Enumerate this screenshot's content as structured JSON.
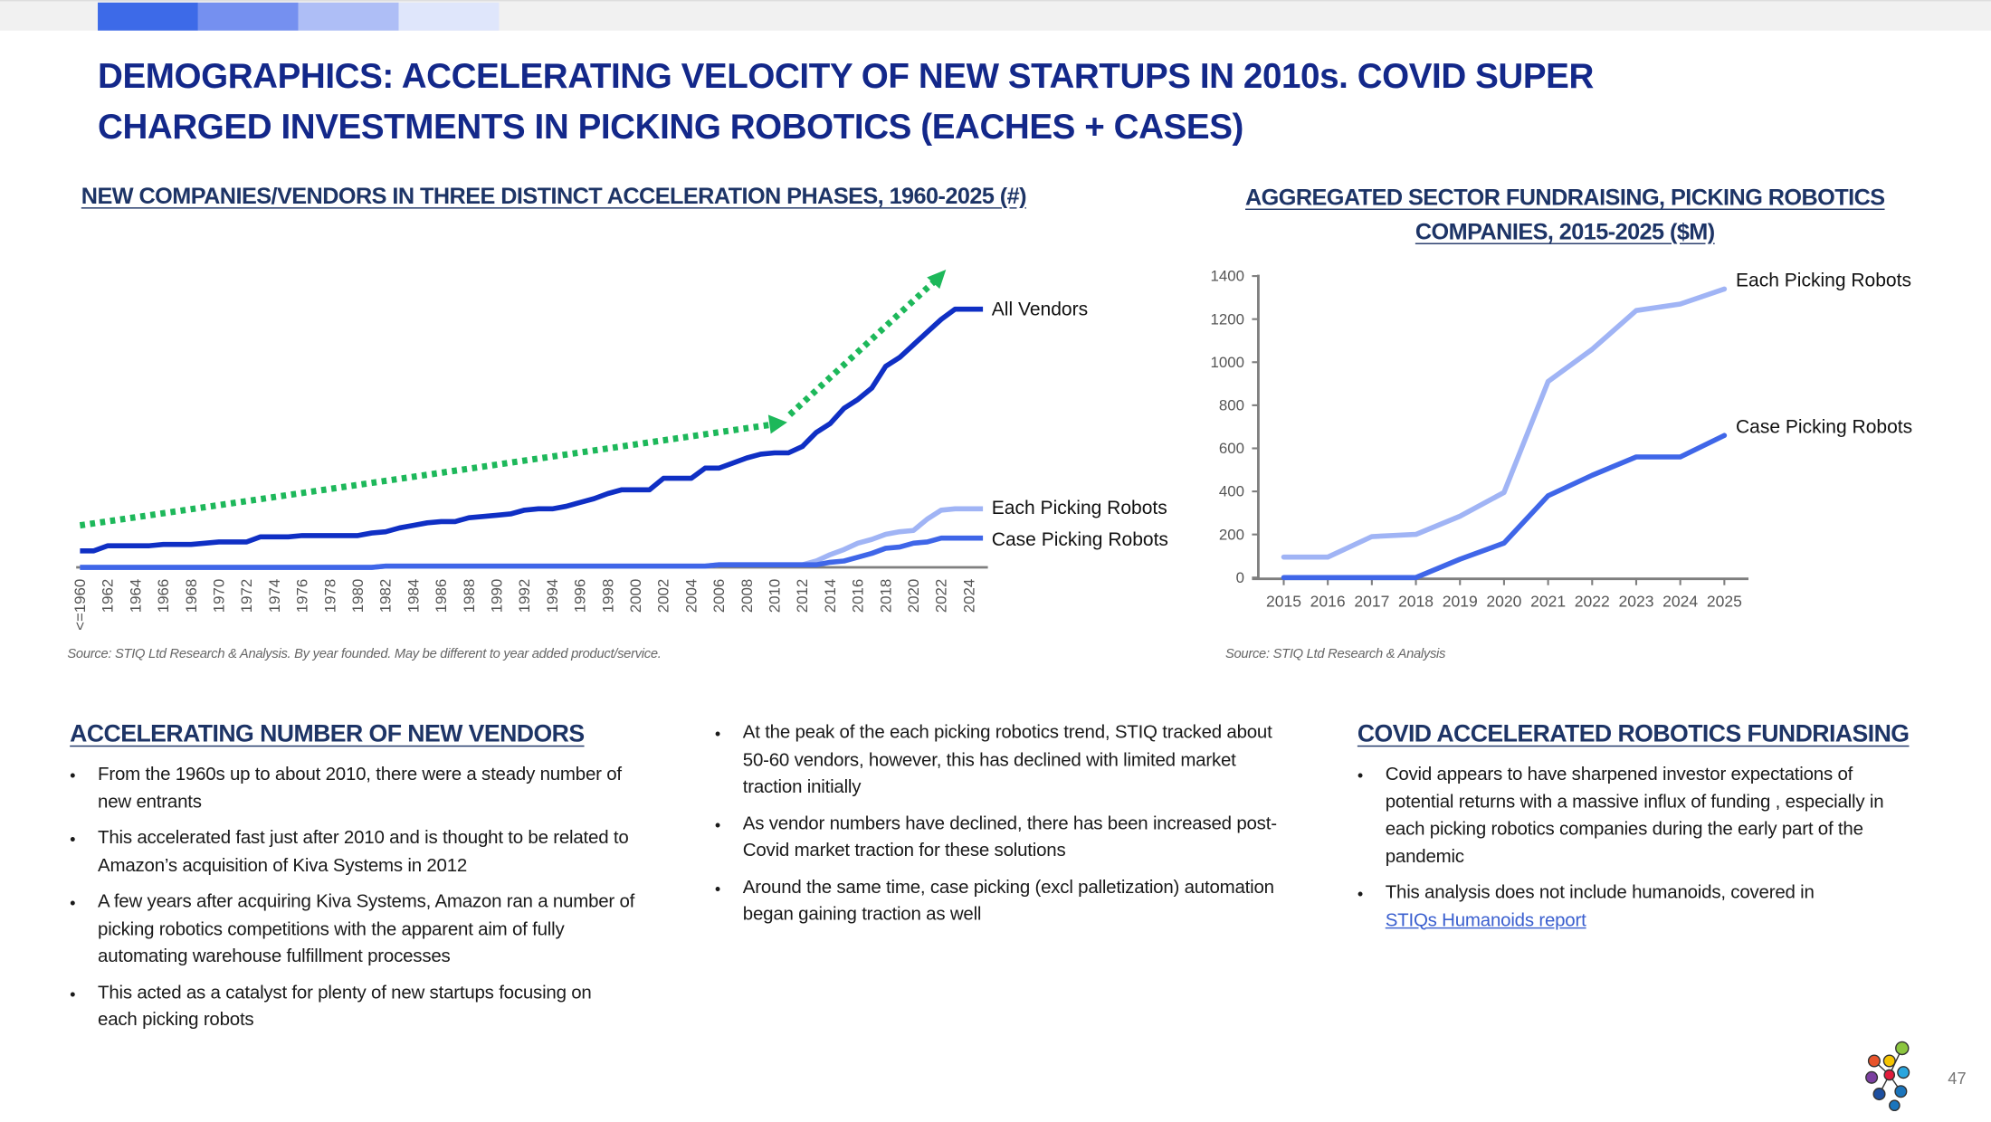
{
  "title": "DEMOGRAPHICS: ACCELERATING VELOCITY OF NEW STARTUPS IN 2010s. COVID SUPER CHARGED INVESTMENTS IN PICKING ROBOTICS (EACHES + CASES)",
  "colors": {
    "title": "#13288a",
    "heading": "#1d3466",
    "all_vendors": "#0f2fc4",
    "each": "#a0b4f5",
    "case": "#3f66e8",
    "trend": "#1db85a",
    "strip": [
      "#3d6ae8",
      "#7590f0",
      "#aebef6",
      "#dfe6fb"
    ]
  },
  "chart_data": [
    {
      "type": "line",
      "title": "NEW COMPANIES/VENDORS IN THREE DISTINCT ACCELERATION PHASES, 1960-2025 (#)",
      "x": [
        1960,
        1961,
        1962,
        1963,
        1964,
        1965,
        1966,
        1967,
        1968,
        1969,
        1970,
        1971,
        1972,
        1973,
        1974,
        1975,
        1976,
        1977,
        1978,
        1979,
        1980,
        1981,
        1982,
        1983,
        1984,
        1985,
        1986,
        1987,
        1988,
        1989,
        1990,
        1991,
        1992,
        1993,
        1994,
        1995,
        1996,
        1997,
        1998,
        1999,
        2000,
        2001,
        2002,
        2003,
        2004,
        2005,
        2006,
        2007,
        2008,
        2009,
        2010,
        2011,
        2012,
        2013,
        2014,
        2015,
        2016,
        2017,
        2018,
        2019,
        2020,
        2021,
        2022,
        2023,
        2024,
        2025
      ],
      "tick_labels": [
        "<=1960",
        "1962",
        "1964",
        "1966",
        "1968",
        "1970",
        "1972",
        "1974",
        "1976",
        "1978",
        "1980",
        "1982",
        "1984",
        "1986",
        "1988",
        "1990",
        "1992",
        "1994",
        "1996",
        "1998",
        "2000",
        "2002",
        "2004",
        "2006",
        "2008",
        "2010",
        "2012",
        "2014",
        "2016",
        "2018",
        "2020",
        "2022",
        "2024"
      ],
      "ylim": [
        0,
        220
      ],
      "y_axis_labels_shown": false,
      "series": [
        {
          "name": "All Vendors",
          "values": [
            13,
            13,
            17,
            17,
            17,
            17,
            18,
            18,
            18,
            19,
            20,
            20,
            20,
            24,
            24,
            24,
            25,
            25,
            25,
            25,
            25,
            27,
            28,
            31,
            33,
            35,
            36,
            36,
            39,
            40,
            41,
            42,
            45,
            46,
            46,
            48,
            51,
            54,
            58,
            61,
            61,
            61,
            70,
            70,
            70,
            78,
            78,
            82,
            86,
            89,
            90,
            90,
            95,
            106,
            113,
            125,
            132,
            141,
            158,
            165,
            175,
            185,
            195,
            203,
            203,
            203
          ]
        },
        {
          "name": "Each Picking Robots",
          "values": [
            0,
            0,
            0,
            0,
            0,
            0,
            0,
            0,
            0,
            0,
            0,
            0,
            0,
            0,
            0,
            0,
            0,
            0,
            0,
            0,
            0,
            0,
            1,
            1,
            1,
            1,
            1,
            1,
            1,
            1,
            1,
            1,
            1,
            1,
            1,
            1,
            1,
            1,
            1,
            1,
            1,
            1,
            1,
            1,
            1,
            1,
            2,
            2,
            2,
            2,
            2,
            2,
            2,
            5,
            10,
            14,
            19,
            22,
            26,
            28,
            29,
            38,
            45,
            46,
            46,
            46
          ]
        },
        {
          "name": "Case Picking Robots",
          "values": [
            0,
            0,
            0,
            0,
            0,
            0,
            0,
            0,
            0,
            0,
            0,
            0,
            0,
            0,
            0,
            0,
            0,
            0,
            0,
            0,
            0,
            0,
            1,
            1,
            1,
            1,
            1,
            1,
            1,
            1,
            1,
            1,
            1,
            1,
            1,
            1,
            1,
            1,
            1,
            1,
            1,
            1,
            1,
            1,
            1,
            1,
            2,
            2,
            2,
            2,
            2,
            2,
            2,
            2,
            4,
            5,
            8,
            11,
            15,
            16,
            19,
            20,
            23,
            23,
            23,
            23
          ]
        }
      ],
      "annotation": "dotted green trend arrows showing acceleration phases",
      "source": "Source: STIQ Ltd Research & Analysis. By year founded. May be different to year added product/service."
    },
    {
      "type": "line",
      "title": "AGGREGATED SECTOR FUNDRAISING, PICKING ROBOTICS COMPANIES, 2015-2025 ($M)",
      "title_lines": [
        "AGGREGATED SECTOR FUNDRAISING, PICKING ROBOTICS",
        "COMPANIES, 2015-2025 ($M)"
      ],
      "categories": [
        "2015",
        "2016",
        "2017",
        "2018",
        "2019",
        "2020",
        "2021",
        "2022",
        "2023",
        "2024",
        "2025"
      ],
      "ylim": [
        0,
        1400
      ],
      "yticks": [
        "0",
        "200",
        "400",
        "600",
        "800",
        "1000",
        "1200",
        "1400"
      ],
      "series": [
        {
          "name": "Each Picking Robots",
          "values": [
            95,
            95,
            190,
            200,
            285,
            395,
            910,
            1060,
            1240,
            1270,
            1340
          ]
        },
        {
          "name": "Case Picking Robots",
          "values": [
            0,
            0,
            0,
            0,
            85,
            160,
            380,
            475,
            560,
            560,
            660
          ]
        }
      ],
      "source": "Source: STIQ Ltd Research & Analysis"
    }
  ],
  "left_section": {
    "heading": "ACCELERATING NUMBER OF NEW VENDORS",
    "bullets": [
      "From the 1960s up to about 2010, there were a steady number of new entrants",
      "This accelerated fast just after 2010 and is thought to be related to Amazon’s acquisition of Kiva Systems in 2012",
      "A few years after acquiring Kiva Systems, Amazon ran a number of picking robotics competitions with the apparent aim of fully automating warehouse fulfillment processes",
      "This acted as a catalyst for plenty of new startups focusing on each picking robots"
    ]
  },
  "middle_section": {
    "bullets": [
      "At the peak of the each picking robotics trend, STIQ tracked about 50-60 vendors, however, this has declined with limited market traction initially",
      "As vendor numbers have declined, there has been increased post-Covid market traction for these solutions",
      "Around the same time, case picking (excl palletization) automation began gaining traction as well"
    ]
  },
  "right_section": {
    "heading": "COVID ACCELERATED ROBOTICS FUNDRIASING",
    "bullets": [
      "Covid appears to have sharpened investor expectations of potential returns with a massive influx of funding , especially in each picking robotics companies during the early part of the pandemic",
      "This analysis does not include humanoids, covered in"
    ],
    "link": "STIQs Humanoids report"
  },
  "logo": "STIQ",
  "page_number": "47"
}
